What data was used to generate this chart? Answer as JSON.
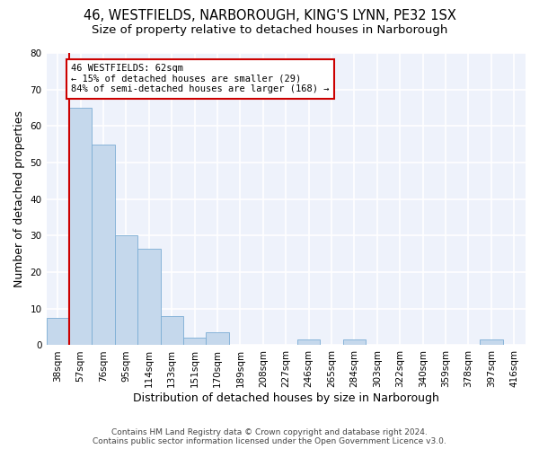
{
  "title": "46, WESTFIELDS, NARBOROUGH, KING'S LYNN, PE32 1SX",
  "subtitle": "Size of property relative to detached houses in Narborough",
  "xlabel": "Distribution of detached houses by size in Narborough",
  "ylabel": "Number of detached properties",
  "bins": [
    "38sqm",
    "57sqm",
    "76sqm",
    "95sqm",
    "114sqm",
    "133sqm",
    "151sqm",
    "170sqm",
    "189sqm",
    "208sqm",
    "227sqm",
    "246sqm",
    "265sqm",
    "284sqm",
    "303sqm",
    "322sqm",
    "340sqm",
    "359sqm",
    "378sqm",
    "397sqm",
    "416sqm"
  ],
  "values": [
    7.5,
    65,
    55,
    30,
    26.5,
    8,
    2,
    3.5,
    0,
    0,
    0,
    1.5,
    0,
    1.5,
    0,
    0,
    0,
    0,
    0,
    1.5,
    0
  ],
  "bar_color": "#c5d8ec",
  "bar_edge_color": "#7badd4",
  "vline_color": "#cc0000",
  "annotation_box_text": "46 WESTFIELDS: 62sqm\n← 15% of detached houses are smaller (29)\n84% of semi-detached houses are larger (168) →",
  "annotation_box_color": "#cc0000",
  "ylim": [
    0,
    80
  ],
  "yticks": [
    0,
    10,
    20,
    30,
    40,
    50,
    60,
    70,
    80
  ],
  "background_color": "#eef2fb",
  "grid_color": "#ffffff",
  "footer_line1": "Contains HM Land Registry data © Crown copyright and database right 2024.",
  "footer_line2": "Contains public sector information licensed under the Open Government Licence v3.0.",
  "title_fontsize": 10.5,
  "subtitle_fontsize": 9.5,
  "axis_label_fontsize": 9,
  "tick_fontsize": 7.5
}
